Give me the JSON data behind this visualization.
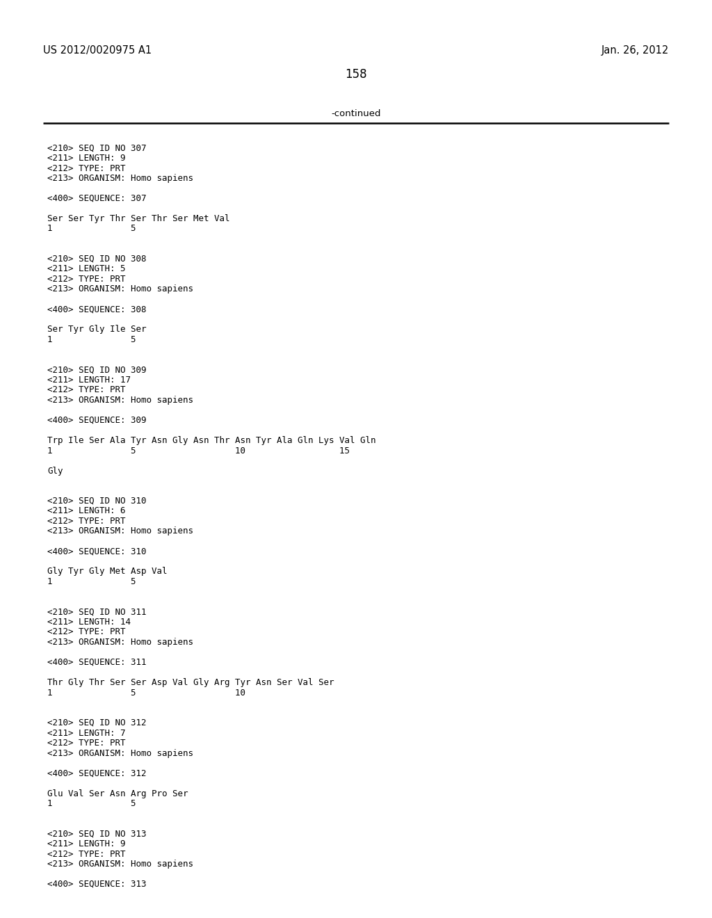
{
  "header_left": "US 2012/0020975 A1",
  "header_right": "Jan. 26, 2012",
  "page_number": "158",
  "continued_text": "-continued",
  "background_color": "#ffffff",
  "text_color": "#000000",
  "font_size": 9.0,
  "header_font_size": 10.5,
  "page_num_font_size": 12,
  "continued_font_size": 9.5,
  "content_lines": [
    "",
    "<210> SEQ ID NO 307",
    "<211> LENGTH: 9",
    "<212> TYPE: PRT",
    "<213> ORGANISM: Homo sapiens",
    "",
    "<400> SEQUENCE: 307",
    "",
    "Ser Ser Tyr Thr Ser Thr Ser Met Val",
    "1               5",
    "",
    "",
    "<210> SEQ ID NO 308",
    "<211> LENGTH: 5",
    "<212> TYPE: PRT",
    "<213> ORGANISM: Homo sapiens",
    "",
    "<400> SEQUENCE: 308",
    "",
    "Ser Tyr Gly Ile Ser",
    "1               5",
    "",
    "",
    "<210> SEQ ID NO 309",
    "<211> LENGTH: 17",
    "<212> TYPE: PRT",
    "<213> ORGANISM: Homo sapiens",
    "",
    "<400> SEQUENCE: 309",
    "",
    "Trp Ile Ser Ala Tyr Asn Gly Asn Thr Asn Tyr Ala Gln Lys Val Gln",
    "1               5                   10                  15",
    "",
    "Gly",
    "",
    "",
    "<210> SEQ ID NO 310",
    "<211> LENGTH: 6",
    "<212> TYPE: PRT",
    "<213> ORGANISM: Homo sapiens",
    "",
    "<400> SEQUENCE: 310",
    "",
    "Gly Tyr Gly Met Asp Val",
    "1               5",
    "",
    "",
    "<210> SEQ ID NO 311",
    "<211> LENGTH: 14",
    "<212> TYPE: PRT",
    "<213> ORGANISM: Homo sapiens",
    "",
    "<400> SEQUENCE: 311",
    "",
    "Thr Gly Thr Ser Ser Asp Val Gly Arg Tyr Asn Ser Val Ser",
    "1               5                   10",
    "",
    "",
    "<210> SEQ ID NO 312",
    "<211> LENGTH: 7",
    "<212> TYPE: PRT",
    "<213> ORGANISM: Homo sapiens",
    "",
    "<400> SEQUENCE: 312",
    "",
    "Glu Val Ser Asn Arg Pro Ser",
    "1               5",
    "",
    "",
    "<210> SEQ ID NO 313",
    "<211> LENGTH: 9",
    "<212> TYPE: PRT",
    "<213> ORGANISM: Homo sapiens",
    "",
    "<400> SEQUENCE: 313"
  ]
}
